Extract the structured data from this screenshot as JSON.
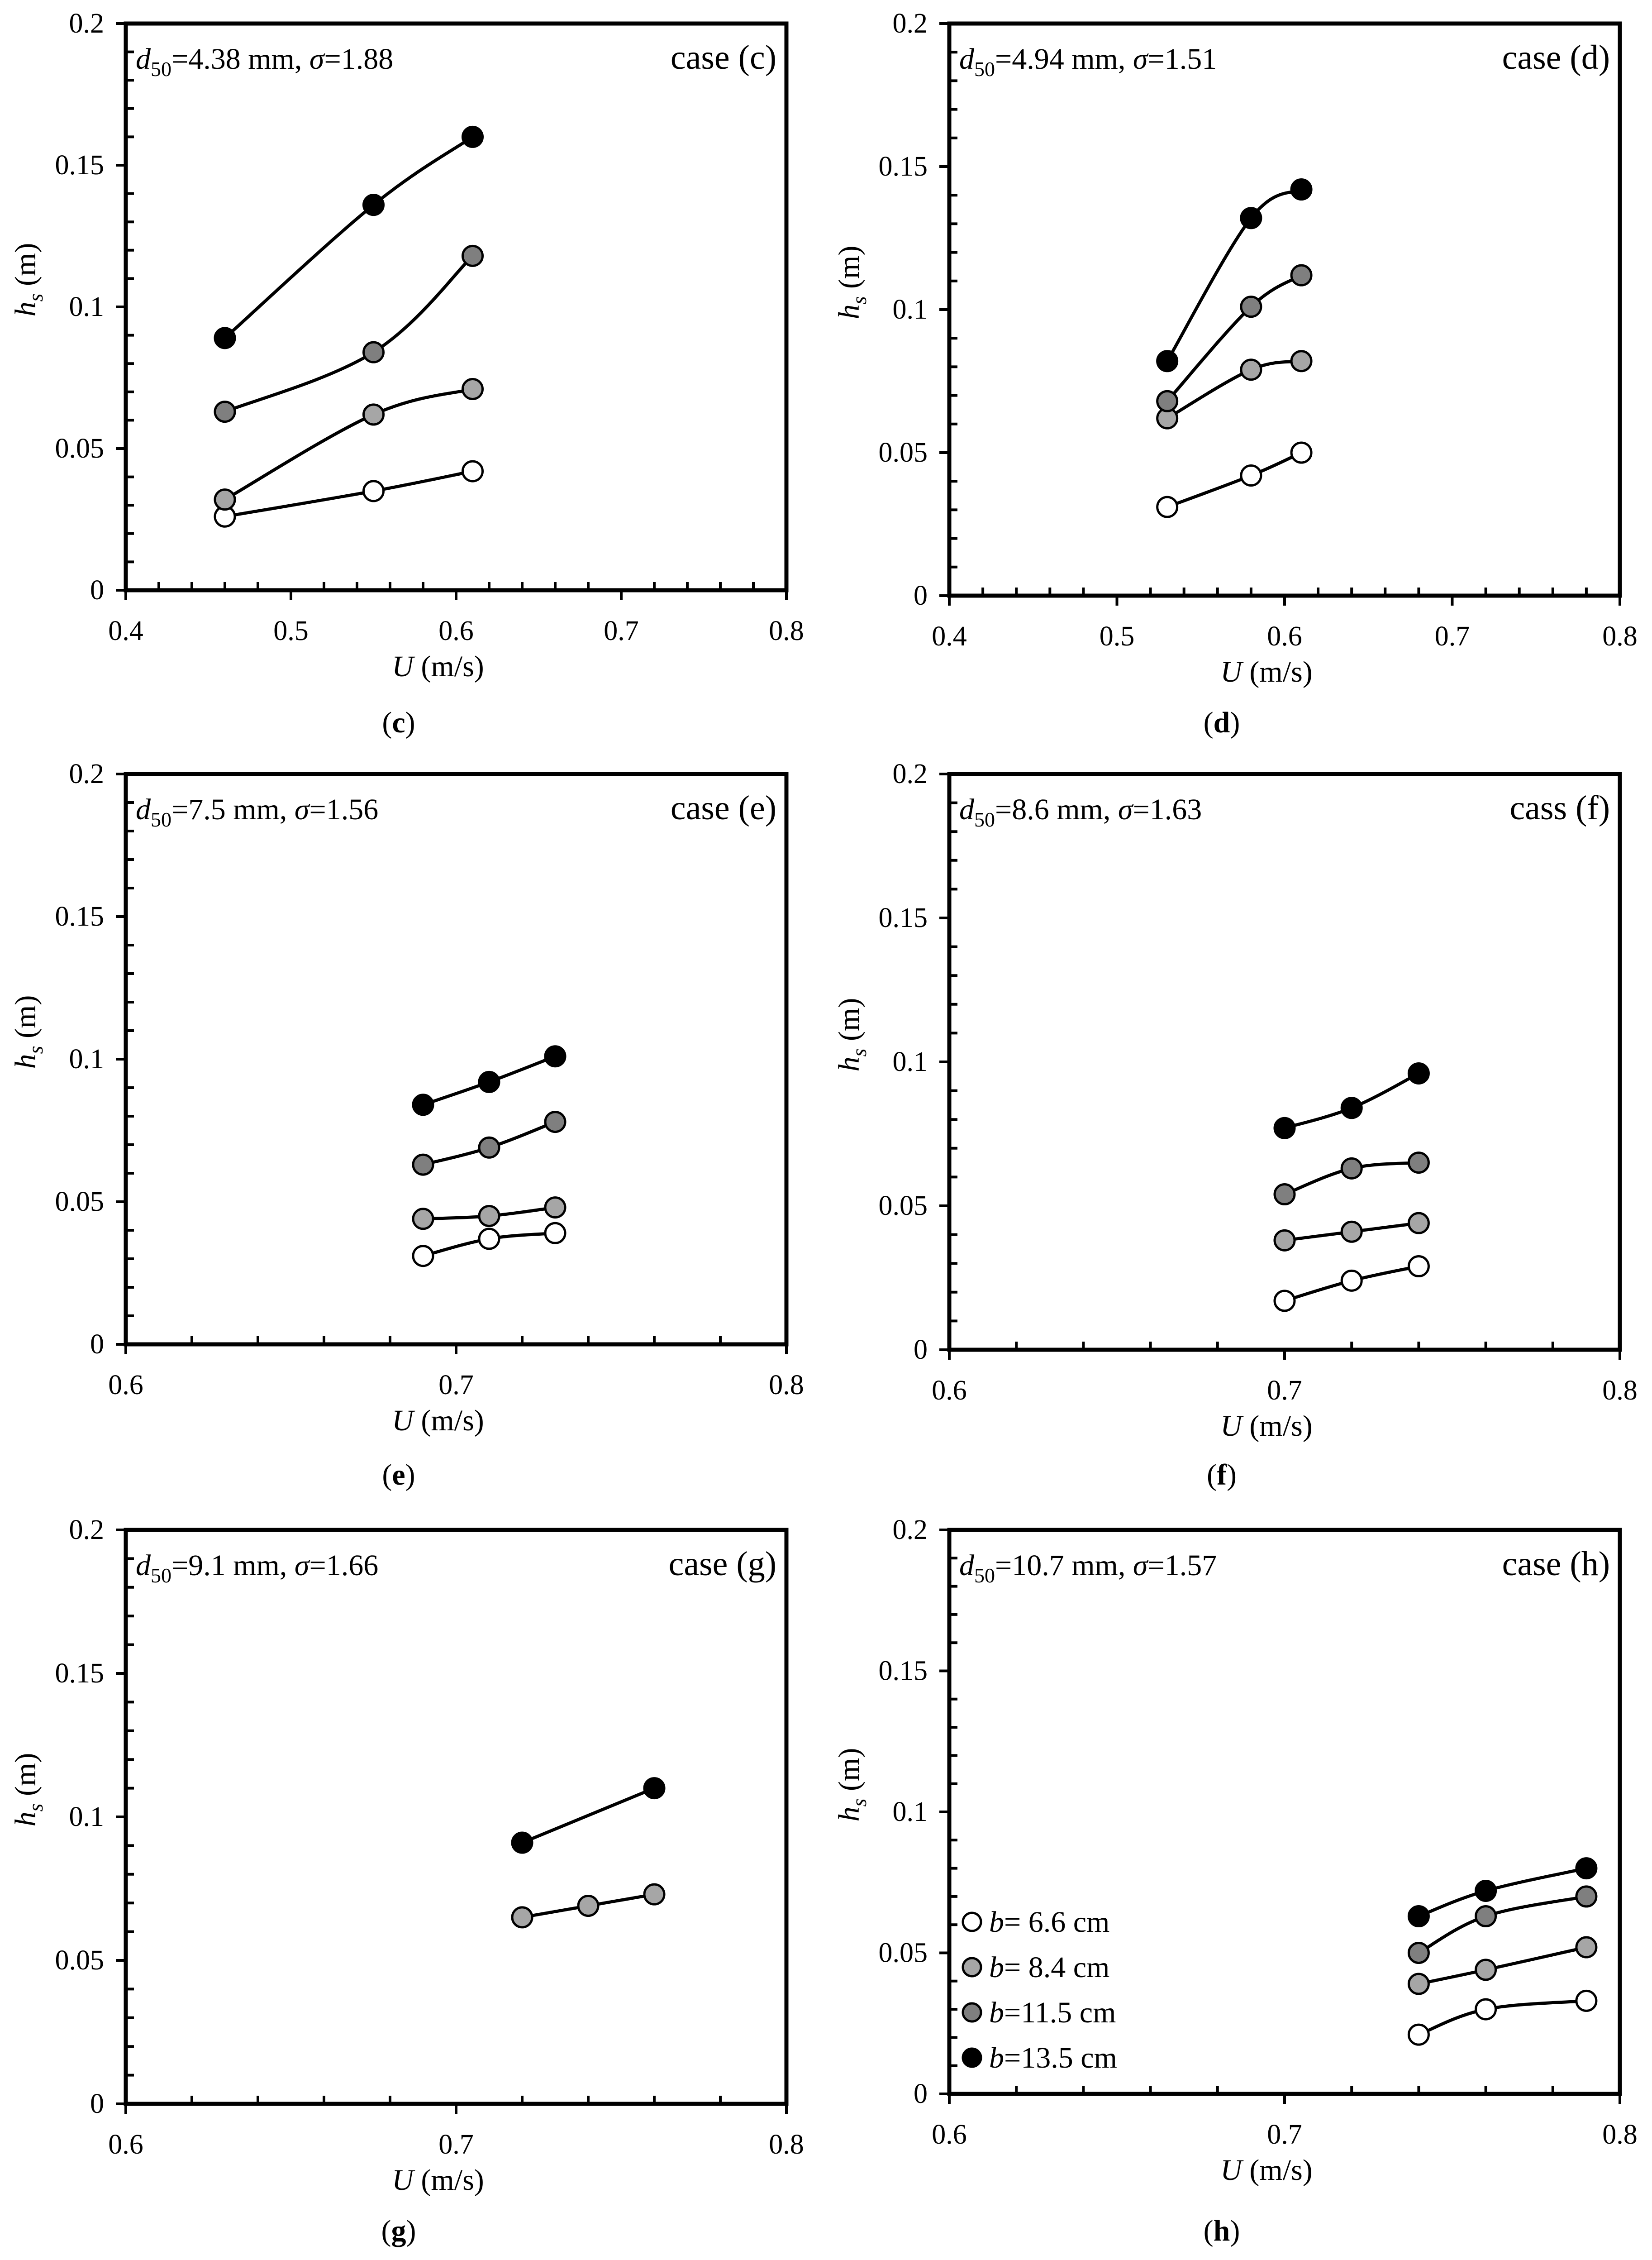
{
  "colors": {
    "b_6_6": "#ffffff",
    "b_8_4": "#a6a6a6",
    "b_11_5": "#7f7f7f",
    "b_13_5": "#000000",
    "axis": "#000000"
  },
  "legend": {
    "items": [
      {
        "var": "b",
        "text": "= 6.6 cm",
        "color": "#ffffff"
      },
      {
        "var": "b",
        "text": "= 8.4 cm",
        "color": "#a6a6a6"
      },
      {
        "var": "b",
        "text": "=11.5 cm",
        "color": "#7f7f7f"
      },
      {
        "var": "b",
        "text": "=13.5 cm",
        "color": "#000000"
      }
    ]
  },
  "chart_data": [
    {
      "type": "line",
      "id": "c",
      "caption": "c",
      "case_label": "case (c)",
      "info": {
        "d_sym": "d",
        "d_sub": "50",
        "d_val": "=4.38 mm, ",
        "s_sym": "σ",
        "s_val": "=1.88"
      },
      "xlabel": {
        "var": "U",
        "unit": " (m/s)"
      },
      "ylabel": {
        "var": "h",
        "sub": "s",
        "unit": " (m)"
      },
      "xlim": [
        0.4,
        0.8
      ],
      "ylim": [
        0,
        0.2
      ],
      "xticks": [
        "0.4",
        "0.5",
        "0.6",
        "0.7",
        "0.8"
      ],
      "yticks": [
        "0",
        "0.05",
        "0.1",
        "0.15",
        "0.2"
      ],
      "series": [
        {
          "name": "b=6.6 cm",
          "color": "#ffffff",
          "x": [
            0.46,
            0.55,
            0.61
          ],
          "y": [
            0.026,
            0.035,
            0.042
          ]
        },
        {
          "name": "b=8.4 cm",
          "color": "#a6a6a6",
          "x": [
            0.46,
            0.55,
            0.61
          ],
          "y": [
            0.032,
            0.062,
            0.071
          ]
        },
        {
          "name": "b=11.5 cm",
          "color": "#7f7f7f",
          "x": [
            0.46,
            0.55,
            0.61
          ],
          "y": [
            0.063,
            0.084,
            0.118
          ]
        },
        {
          "name": "b=13.5 cm",
          "color": "#000000",
          "x": [
            0.46,
            0.55,
            0.61
          ],
          "y": [
            0.089,
            0.136,
            0.16
          ]
        }
      ]
    },
    {
      "type": "line",
      "id": "d",
      "caption": "d",
      "case_label": "case (d)",
      "info": {
        "d_sym": "d",
        "d_sub": "50",
        "d_val": "=4.94 mm, ",
        "s_sym": "σ",
        "s_val": "=1.51"
      },
      "xlabel": {
        "var": "U",
        "unit": " (m/s)"
      },
      "ylabel": {
        "var": "h",
        "sub": "s",
        "unit": " (m)"
      },
      "xlim": [
        0.4,
        0.8
      ],
      "ylim": [
        0,
        0.2
      ],
      "xticks": [
        "0.4",
        "0.5",
        "0.6",
        "0.7",
        "0.8"
      ],
      "yticks": [
        "0",
        "0.05",
        "0.1",
        "0.15",
        "0.2"
      ],
      "series": [
        {
          "name": "b=6.6 cm",
          "color": "#ffffff",
          "x": [
            0.53,
            0.58,
            0.61
          ],
          "y": [
            0.031,
            0.042,
            0.05
          ]
        },
        {
          "name": "b=8.4 cm",
          "color": "#a6a6a6",
          "x": [
            0.53,
            0.58,
            0.61
          ],
          "y": [
            0.062,
            0.079,
            0.082
          ]
        },
        {
          "name": "b=11.5 cm",
          "color": "#7f7f7f",
          "x": [
            0.53,
            0.58,
            0.61
          ],
          "y": [
            0.068,
            0.101,
            0.112
          ]
        },
        {
          "name": "b=13.5 cm",
          "color": "#000000",
          "x": [
            0.53,
            0.58,
            0.61
          ],
          "y": [
            0.082,
            0.132,
            0.142
          ]
        }
      ]
    },
    {
      "type": "line",
      "id": "e",
      "caption": "e",
      "case_label": "case (e)",
      "info": {
        "d_sym": "d",
        "d_sub": "50",
        "d_val": "=7.5 mm, ",
        "s_sym": "σ",
        "s_val": "=1.56"
      },
      "xlabel": {
        "var": "U",
        "unit": " (m/s)"
      },
      "ylabel": {
        "var": "h",
        "sub": "s",
        "unit": " (m)"
      },
      "xlim": [
        0.6,
        0.8
      ],
      "ylim": [
        0,
        0.2
      ],
      "xticks": [
        "0.6",
        "0.7",
        "0.8"
      ],
      "yticks": [
        "0",
        "0.05",
        "0.1",
        "0.15",
        "0.2"
      ],
      "series": [
        {
          "name": "b=6.6 cm",
          "color": "#ffffff",
          "x": [
            0.69,
            0.71,
            0.73
          ],
          "y": [
            0.031,
            0.037,
            0.039
          ]
        },
        {
          "name": "b=8.4 cm",
          "color": "#a6a6a6",
          "x": [
            0.69,
            0.71,
            0.73
          ],
          "y": [
            0.044,
            0.045,
            0.048
          ]
        },
        {
          "name": "b=11.5 cm",
          "color": "#7f7f7f",
          "x": [
            0.69,
            0.71,
            0.73
          ],
          "y": [
            0.063,
            0.069,
            0.078
          ]
        },
        {
          "name": "b=13.5 cm",
          "color": "#000000",
          "x": [
            0.69,
            0.71,
            0.73
          ],
          "y": [
            0.084,
            0.092,
            0.101
          ]
        }
      ]
    },
    {
      "type": "line",
      "id": "f",
      "caption": "f",
      "case_label": "cass (f)",
      "info": {
        "d_sym": "d",
        "d_sub": "50",
        "d_val": "=8.6 mm, ",
        "s_sym": "σ",
        "s_val": "=1.63"
      },
      "xlabel": {
        "var": "U",
        "unit": " (m/s)"
      },
      "ylabel": {
        "var": "h",
        "sub": "s",
        "unit": " (m)"
      },
      "xlim": [
        0.6,
        0.8
      ],
      "ylim": [
        0,
        0.2
      ],
      "xticks": [
        "0.6",
        "0.7",
        "0.8"
      ],
      "yticks": [
        "0",
        "0.05",
        "0.1",
        "0.15",
        "0.2"
      ],
      "series": [
        {
          "name": "b=6.6 cm",
          "color": "#ffffff",
          "x": [
            0.7,
            0.72,
            0.74
          ],
          "y": [
            0.017,
            0.024,
            0.029
          ]
        },
        {
          "name": "b=8.4 cm",
          "color": "#a6a6a6",
          "x": [
            0.7,
            0.72,
            0.74
          ],
          "y": [
            0.038,
            0.041,
            0.044
          ]
        },
        {
          "name": "b=11.5 cm",
          "color": "#7f7f7f",
          "x": [
            0.7,
            0.72,
            0.74
          ],
          "y": [
            0.054,
            0.063,
            0.065
          ]
        },
        {
          "name": "b=13.5 cm",
          "color": "#000000",
          "x": [
            0.7,
            0.72,
            0.74
          ],
          "y": [
            0.077,
            0.084,
            0.096
          ]
        }
      ]
    },
    {
      "type": "line",
      "id": "g",
      "caption": "g",
      "case_label": "case (g)",
      "info": {
        "d_sym": "d",
        "d_sub": "50",
        "d_val": "=9.1 mm, ",
        "s_sym": "σ",
        "s_val": "=1.66"
      },
      "xlabel": {
        "var": "U",
        "unit": " (m/s)"
      },
      "ylabel": {
        "var": "h",
        "sub": "s",
        "unit": " (m)"
      },
      "xlim": [
        0.6,
        0.8
      ],
      "ylim": [
        0,
        0.2
      ],
      "xticks": [
        "0.6",
        "0.7",
        "0.8"
      ],
      "yticks": [
        "0",
        "0.05",
        "0.1",
        "0.15",
        "0.2"
      ],
      "series": [
        {
          "name": "b=8.4 cm",
          "color": "#a6a6a6",
          "x": [
            0.72,
            0.74,
            0.76
          ],
          "y": [
            0.065,
            0.069,
            0.073
          ]
        },
        {
          "name": "b=13.5 cm",
          "color": "#000000",
          "x": [
            0.72,
            0.76
          ],
          "y": [
            0.091,
            0.11
          ]
        }
      ]
    },
    {
      "type": "line",
      "id": "h",
      "caption": "h",
      "case_label": "case (h)",
      "info": {
        "d_sym": "d",
        "d_sub": "50",
        "d_val": "=10.7 mm, ",
        "s_sym": "σ",
        "s_val": "=1.57"
      },
      "xlabel": {
        "var": "U",
        "unit": " (m/s)"
      },
      "ylabel": {
        "var": "h",
        "sub": "s",
        "unit": " (m)"
      },
      "xlim": [
        0.6,
        0.8
      ],
      "ylim": [
        0,
        0.2
      ],
      "xticks": [
        "0.6",
        "0.7",
        "0.8"
      ],
      "yticks": [
        "0",
        "0.05",
        "0.1",
        "0.15",
        "0.2"
      ],
      "has_legend": true,
      "series": [
        {
          "name": "b=6.6 cm",
          "color": "#ffffff",
          "x": [
            0.74,
            0.76,
            0.79
          ],
          "y": [
            0.021,
            0.03,
            0.033
          ]
        },
        {
          "name": "b=8.4 cm",
          "color": "#a6a6a6",
          "x": [
            0.74,
            0.76,
            0.79
          ],
          "y": [
            0.039,
            0.044,
            0.052
          ]
        },
        {
          "name": "b=11.5 cm",
          "color": "#7f7f7f",
          "x": [
            0.74,
            0.76,
            0.79
          ],
          "y": [
            0.05,
            0.063,
            0.07
          ]
        },
        {
          "name": "b=13.5 cm",
          "color": "#000000",
          "x": [
            0.74,
            0.76,
            0.79
          ],
          "y": [
            0.063,
            0.072,
            0.08
          ]
        }
      ]
    }
  ]
}
